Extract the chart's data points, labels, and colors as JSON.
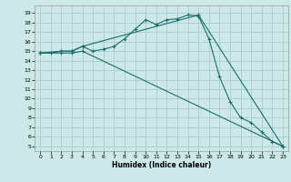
{
  "title": "",
  "xlabel": "Humidex (Indice chaleur)",
  "background_color": "#cce8e8",
  "grid_color": "#aacccc",
  "line_color": "#1a6e6a",
  "xlim": [
    -0.5,
    23.5
  ],
  "ylim": [
    4.5,
    19.8
  ],
  "yticks": [
    5,
    6,
    7,
    8,
    9,
    10,
    11,
    12,
    13,
    14,
    15,
    16,
    17,
    18,
    19
  ],
  "xticks": [
    0,
    1,
    2,
    3,
    4,
    5,
    6,
    7,
    8,
    9,
    10,
    11,
    12,
    13,
    14,
    15,
    16,
    17,
    18,
    19,
    20,
    21,
    22,
    23
  ],
  "line1_x": [
    0,
    1,
    2,
    3,
    4,
    5,
    6,
    7,
    8,
    9,
    10,
    11,
    12,
    13,
    14,
    15,
    16,
    17,
    18,
    19,
    20,
    21,
    22,
    23
  ],
  "line1_y": [
    14.8,
    14.8,
    15.0,
    15.0,
    15.5,
    15.0,
    15.2,
    15.5,
    16.3,
    17.3,
    18.3,
    17.8,
    18.3,
    18.4,
    18.8,
    18.7,
    16.3,
    12.3,
    9.7,
    8.0,
    7.5,
    6.5,
    5.5,
    5.0
  ],
  "line2_x": [
    0,
    2,
    3,
    4,
    15,
    23
  ],
  "line2_y": [
    14.8,
    15.0,
    15.0,
    15.5,
    18.8,
    5.0
  ],
  "line3_x": [
    0,
    2,
    3,
    4,
    23
  ],
  "line3_y": [
    14.8,
    14.8,
    14.8,
    15.0,
    5.0
  ]
}
